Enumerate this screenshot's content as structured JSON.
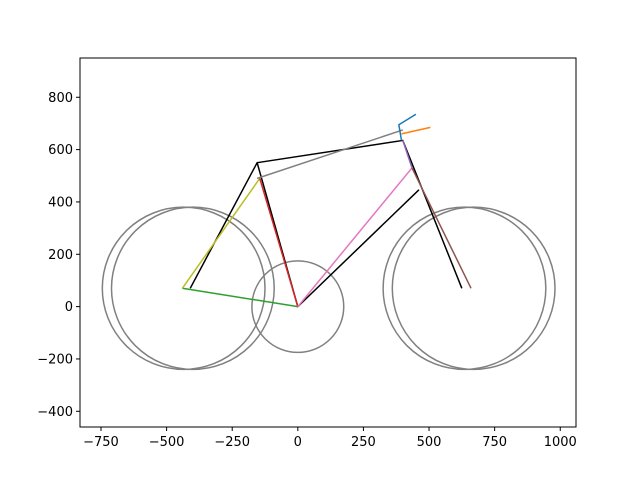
{
  "chart_data": {
    "type": "line",
    "title": "",
    "xlabel": "",
    "ylabel": "",
    "xlim": [
      -830,
      1060
    ],
    "ylim": [
      -460,
      950
    ],
    "grid": false,
    "x_ticks": [
      -750,
      -500,
      -250,
      0,
      250,
      500,
      750,
      1000
    ],
    "y_ticks": [
      -400,
      -200,
      0,
      200,
      400,
      600,
      800
    ],
    "x_tick_labels": [
      "−750",
      "−500",
      "−250",
      "0",
      "250",
      "500",
      "750",
      "1000"
    ],
    "y_tick_labels": [
      "−400",
      "−200",
      "0",
      "200",
      "400",
      "600",
      "800"
    ],
    "circles": [
      {
        "cx": -435,
        "cy": 70,
        "r": 310,
        "color": "#808080"
      },
      {
        "cx": -400,
        "cy": 70,
        "r": 310,
        "color": "#808080"
      },
      {
        "cx": 635,
        "cy": 70,
        "r": 310,
        "color": "#808080"
      },
      {
        "cx": 670,
        "cy": 70,
        "r": 310,
        "color": "#808080"
      },
      {
        "cx": 0,
        "cy": 0,
        "r": 175,
        "color": "#808080"
      }
    ],
    "series": [
      {
        "color": "#000000",
        "x": [
          -410,
          -155,
          0,
          460,
          0
        ],
        "y": [
          70,
          550,
          0,
          445,
          0
        ]
      },
      {
        "color": "#000000",
        "x": [
          -155,
          400,
          625
        ],
        "y": [
          550,
          635,
          70
        ]
      },
      {
        "color": "#808080",
        "x": [
          -155,
          400
        ],
        "y": [
          490,
          675
        ]
      },
      {
        "color": "#2ca02c",
        "x": [
          -440,
          0
        ],
        "y": [
          70,
          0
        ]
      },
      {
        "color": "#bcbd22",
        "x": [
          -440,
          -145
        ],
        "y": [
          70,
          490
        ]
      },
      {
        "color": "#d62728",
        "x": [
          -145,
          0
        ],
        "y": [
          490,
          0
        ]
      },
      {
        "color": "#e377c2",
        "x": [
          0,
          435
        ],
        "y": [
          0,
          530
        ]
      },
      {
        "color": "#9467bd",
        "x": [
          435,
          400
        ],
        "y": [
          530,
          635
        ]
      },
      {
        "color": "#8c564b",
        "x": [
          435,
          660
        ],
        "y": [
          530,
          70
        ]
      },
      {
        "color": "#1f77b4",
        "x": [
          395,
          385,
          450
        ],
        "y": [
          635,
          695,
          735
        ]
      },
      {
        "color": "#ff7f0e",
        "x": [
          395,
          505
        ],
        "y": [
          660,
          685
        ]
      }
    ]
  }
}
